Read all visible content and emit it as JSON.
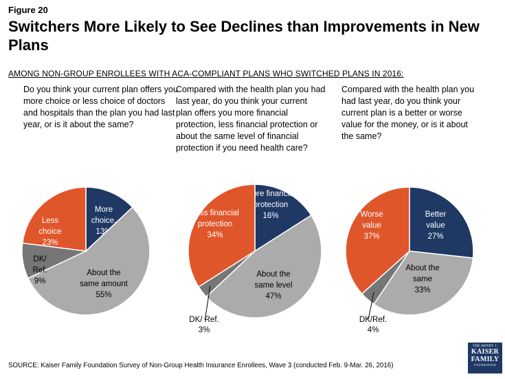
{
  "figure_label": "Figure 20",
  "title": "Switchers More Likely to See Declines than Improvements in New Plans",
  "subtitle": "AMONG NON-GROUP ENROLLEES WITH ACA-COMPLIANT PLANS WHO SWITCHED PLANS IN 2016:",
  "source": "SOURCE: Kaiser Family Foundation Survey of Non-Group Health Insurance Enrollees, Wave 3 (conducted Feb. 9-Mar. 26, 2016)",
  "logo": {
    "line1": "THE HENRY J.",
    "line2": "KAISER",
    "line3": "FAMILY",
    "line4": "FOUNDATION"
  },
  "colors": {
    "navy": "#1f3864",
    "orange": "#e0562b",
    "gray": "#ababab",
    "darkgray": "#767676",
    "stroke": "#ffffff"
  },
  "chart_data": [
    {
      "type": "pie",
      "question": "Do you think your current plan offers you more choice or less choice of doctors and hospitals than the plan you had last year, or is it about the same?",
      "slices": [
        {
          "label": "More choice,",
          "value": 13,
          "value_label": "13%",
          "color": "#1f3864"
        },
        {
          "label": "About the same amount",
          "value": 55,
          "value_label": "55%",
          "color": "#ababab"
        },
        {
          "label": "DK/ Ref.",
          "value": 9,
          "value_label": "9%",
          "color": "#767676"
        },
        {
          "label": "Less choice",
          "value": 23,
          "value_label": "23%",
          "color": "#e0562b"
        }
      ]
    },
    {
      "type": "pie",
      "question": "Compared with the health plan you had last year, do you think your current plan offers you more financial protection, less financial protection or about the same level of financial protection if you need health care?",
      "slices": [
        {
          "label": "More financial protection",
          "value": 16,
          "value_label": "16%",
          "color": "#1f3864"
        },
        {
          "label": "About the same level",
          "value": 47,
          "value_label": "47%",
          "color": "#ababab"
        },
        {
          "label": "DK/ Ref.",
          "value": 3,
          "value_label": "3%",
          "color": "#767676"
        },
        {
          "label": "Less financial protection",
          "value": 34,
          "value_label": "34%",
          "color": "#e0562b"
        }
      ]
    },
    {
      "type": "pie",
      "question": "Compared with the health plan you had last year, do you think your current plan is a better or worse value for the money, or is it about the same?",
      "slices": [
        {
          "label": "Better value",
          "value": 27,
          "value_label": "27%",
          "color": "#1f3864"
        },
        {
          "label": "About the same",
          "value": 33,
          "value_label": "33%",
          "color": "#ababab"
        },
        {
          "label": "DK/Ref.",
          "value": 4,
          "value_label": "4%",
          "color": "#767676"
        },
        {
          "label": "Worse value",
          "value": 37,
          "value_label": "37%",
          "color": "#e0562b"
        }
      ]
    }
  ]
}
